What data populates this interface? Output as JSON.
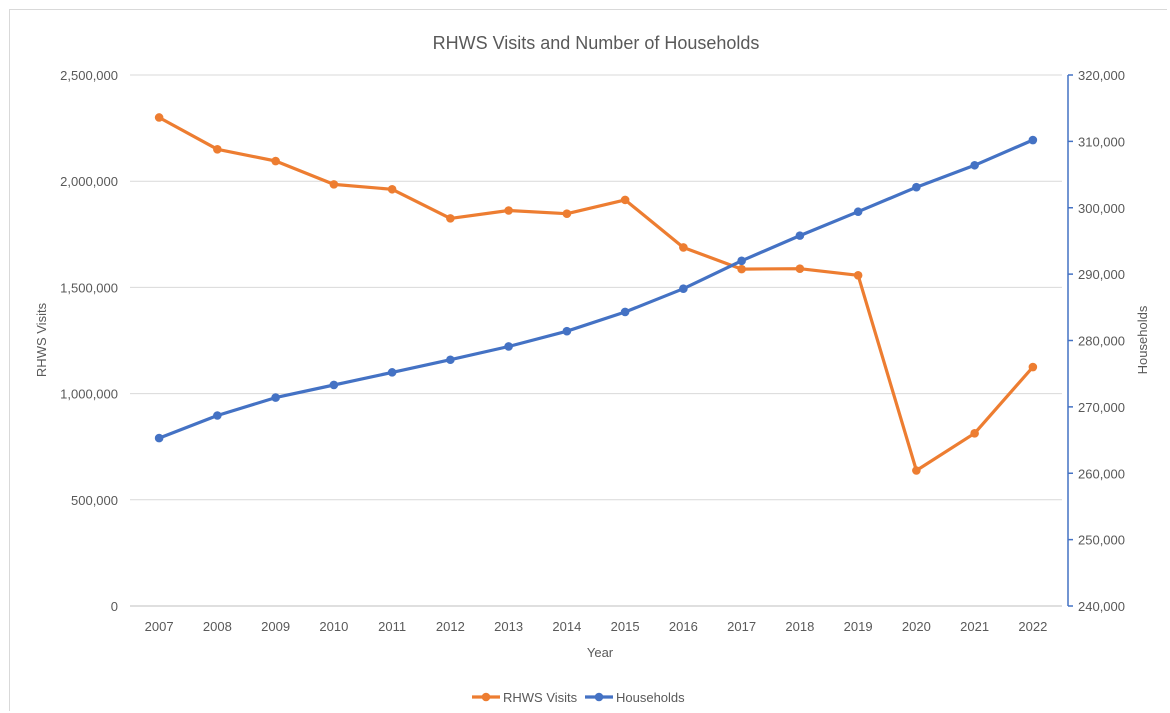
{
  "chart_data": {
    "type": "line",
    "title": "RHWS Visits and Number of Households",
    "xlabel": "Year",
    "ylabel": "RHWS Visits",
    "y2label": "Households",
    "categories": [
      "2007",
      "2008",
      "2009",
      "2010",
      "2011",
      "2012",
      "2013",
      "2014",
      "2015",
      "2016",
      "2017",
      "2018",
      "2019",
      "2020",
      "2021",
      "2022"
    ],
    "ylim": [
      0,
      2500000
    ],
    "y_ticks": [
      "0",
      "500,000",
      "1,000,000",
      "1,500,000",
      "2,000,000",
      "2,500,000"
    ],
    "y2lim": [
      240000,
      320000
    ],
    "y2_ticks": [
      "240,000",
      "250,000",
      "260,000",
      "270,000",
      "280,000",
      "290,000",
      "300,000",
      "310,000",
      "320,000"
    ],
    "grid": true,
    "legend_position": "bottom",
    "series": [
      {
        "name": "RHWS Visits",
        "axis": "left",
        "color": "#ED7D31",
        "values": [
          2300000,
          2150000,
          2095000,
          1985000,
          1962000,
          1825000,
          1862000,
          1847000,
          1912000,
          1688000,
          1586000,
          1588000,
          1557000,
          638000,
          813000,
          1125000
        ]
      },
      {
        "name": "Households",
        "axis": "right",
        "color": "#4472C4",
        "values": [
          265300,
          268700,
          271400,
          273300,
          275200,
          277100,
          279100,
          281400,
          284300,
          287800,
          292000,
          295800,
          299400,
          303100,
          306400,
          310200
        ]
      }
    ]
  }
}
